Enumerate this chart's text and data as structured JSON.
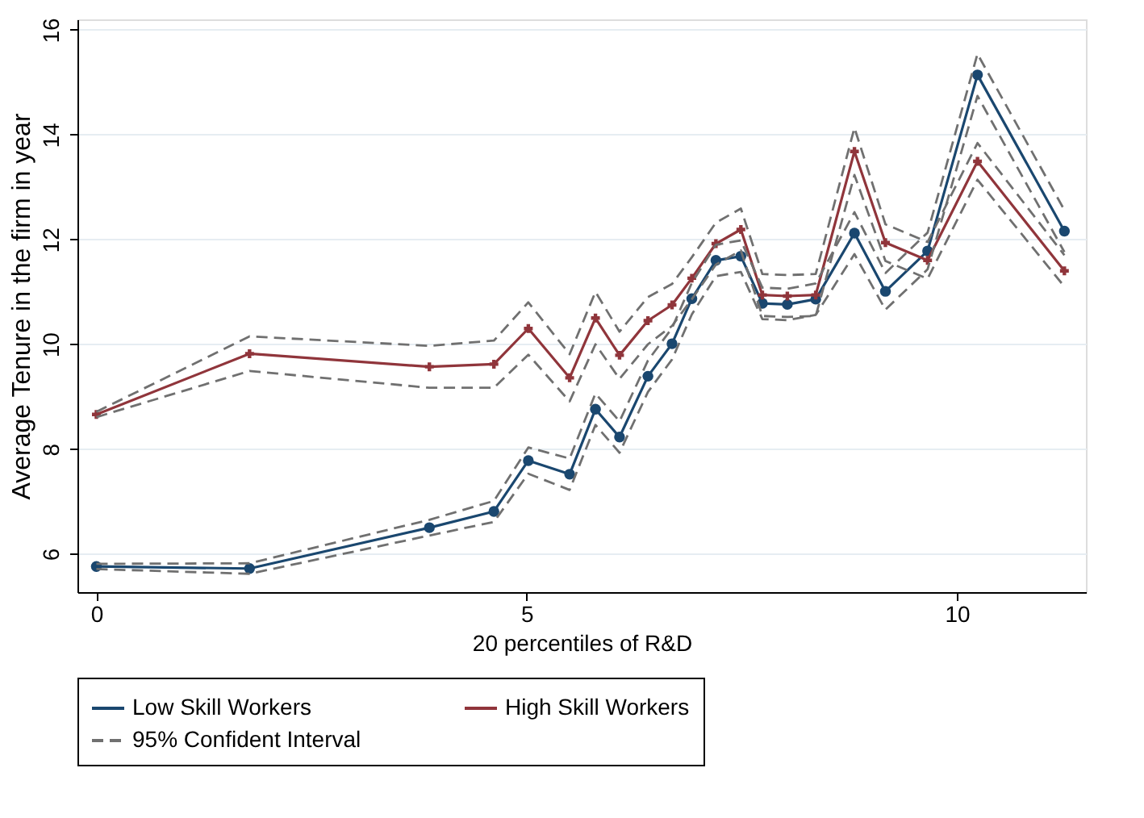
{
  "chart_data": {
    "type": "line",
    "xlabel": "20 percentiles of R&D",
    "ylabel": "Average Tenure in the firm in year",
    "x": [
      0,
      1.78,
      3.87,
      4.62,
      5.02,
      5.5,
      5.8,
      6.08,
      6.41,
      6.69,
      6.92,
      7.2,
      7.49,
      7.74,
      8.03,
      8.36,
      8.81,
      9.17,
      9.66,
      10.24,
      11.25
    ],
    "series": [
      {
        "name": "Low Skill Workers",
        "color": "#1a476f",
        "marker": "circle",
        "line_style": "solid",
        "values": [
          5.76,
          5.72,
          6.5,
          6.81,
          7.78,
          7.52,
          8.76,
          8.23,
          9.39,
          10.01,
          10.87,
          11.6,
          11.68,
          10.78,
          10.76,
          10.86,
          12.12,
          11.01,
          11.78,
          15.14,
          12.16
        ]
      },
      {
        "name": "High Skill Workers",
        "color": "#90353b",
        "marker": "cross",
        "line_style": "solid",
        "values": [
          8.66,
          9.82,
          9.57,
          9.62,
          10.3,
          9.36,
          10.5,
          9.79,
          10.45,
          10.75,
          11.26,
          11.92,
          12.19,
          10.94,
          10.92,
          10.94,
          13.68,
          11.94,
          11.6,
          13.49,
          11.4
        ]
      },
      {
        "name": "95% Confident Interval",
        "color": "#707070",
        "marker": "none",
        "line_style": "dashed",
        "values": [
          5.81,
          5.82,
          6.65,
          7.01,
          8.03,
          7.82,
          9.06,
          8.53,
          9.69,
          10.31,
          11.17,
          11.9,
          11.98,
          11.08,
          11.06,
          11.16,
          12.52,
          11.36,
          12.13,
          15.54,
          12.56
        ]
      },
      {
        "color": "#707070",
        "marker": "none",
        "line_style": "dashed",
        "values": [
          5.71,
          5.62,
          6.35,
          6.61,
          7.53,
          7.22,
          8.46,
          7.93,
          9.09,
          9.71,
          10.57,
          11.3,
          11.38,
          10.48,
          10.46,
          10.56,
          11.72,
          10.66,
          11.43,
          14.74,
          11.76
        ]
      },
      {
        "color": "#707070",
        "marker": "none",
        "line_style": "dashed",
        "values": [
          8.71,
          10.15,
          9.97,
          10.07,
          10.8,
          9.81,
          11.0,
          10.24,
          10.9,
          11.15,
          11.66,
          12.32,
          12.59,
          11.34,
          11.32,
          11.34,
          14.13,
          12.29,
          11.95,
          13.84,
          11.7
        ]
      },
      {
        "color": "#707070",
        "marker": "none",
        "line_style": "dashed",
        "values": [
          8.61,
          9.49,
          9.17,
          9.17,
          9.8,
          8.91,
          10.0,
          9.34,
          10.0,
          10.35,
          10.86,
          11.52,
          11.79,
          10.54,
          10.52,
          10.54,
          13.23,
          11.59,
          11.25,
          13.14,
          11.1
        ]
      }
    ],
    "xlim": [
      -0.22,
      11.5
    ],
    "ylim": [
      5.27,
      16.2
    ],
    "xticks": [
      0,
      5,
      10
    ],
    "yticks": [
      6,
      8,
      10,
      12,
      14,
      16
    ],
    "grid": "y",
    "legend": "bottom"
  }
}
